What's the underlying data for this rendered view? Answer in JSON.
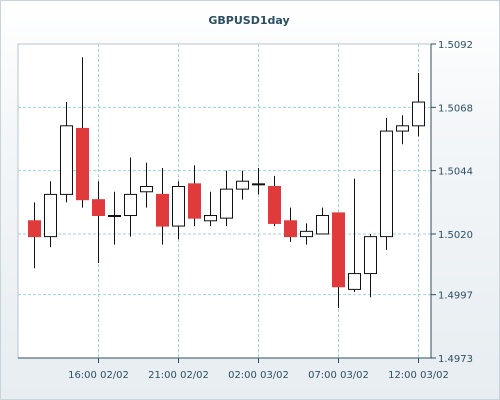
{
  "chart_data": {
    "type": "candlestick",
    "title": "GBPUSD1day",
    "ylim": [
      1.4973,
      1.5092
    ],
    "yticks": [
      "1.5092",
      "1.5068",
      "1.5044",
      "1.5020",
      "1.4997",
      "1.4973"
    ],
    "xticks": [
      {
        "label": "16:00 02/02",
        "index": 4
      },
      {
        "label": "21:00 02/02",
        "index": 9
      },
      {
        "label": "02:00 03/02",
        "index": 14
      },
      {
        "label": "07:00 03/02",
        "index": 19
      },
      {
        "label": "12:00 03/02",
        "index": 24
      }
    ],
    "grid": true,
    "candles": [
      {
        "o": 1.5025,
        "h": 1.5032,
        "l": 1.5007,
        "c": 1.5019
      },
      {
        "o": 1.5019,
        "h": 1.504,
        "l": 1.5015,
        "c": 1.5035
      },
      {
        "o": 1.5035,
        "h": 1.507,
        "l": 1.5032,
        "c": 1.5061
      },
      {
        "o": 1.506,
        "h": 1.5087,
        "l": 1.503,
        "c": 1.5033
      },
      {
        "o": 1.5033,
        "h": 1.504,
        "l": 1.5009,
        "c": 1.5027
      },
      {
        "o": 1.5027,
        "h": 1.5036,
        "l": 1.5016,
        "c": 1.5027
      },
      {
        "o": 1.5027,
        "h": 1.5049,
        "l": 1.5019,
        "c": 1.5035
      },
      {
        "o": 1.5036,
        "h": 1.5047,
        "l": 1.503,
        "c": 1.5038
      },
      {
        "o": 1.5035,
        "h": 1.5045,
        "l": 1.5016,
        "c": 1.5023
      },
      {
        "o": 1.5023,
        "h": 1.504,
        "l": 1.5018,
        "c": 1.5038
      },
      {
        "o": 1.5039,
        "h": 1.5046,
        "l": 1.5023,
        "c": 1.5026
      },
      {
        "o": 1.5025,
        "h": 1.5036,
        "l": 1.5023,
        "c": 1.5027
      },
      {
        "o": 1.5026,
        "h": 1.5044,
        "l": 1.5023,
        "c": 1.5037
      },
      {
        "o": 1.5037,
        "h": 1.5044,
        "l": 1.5033,
        "c": 1.504
      },
      {
        "o": 1.5039,
        "h": 1.5045,
        "l": 1.5035,
        "c": 1.5039
      },
      {
        "o": 1.5038,
        "h": 1.5042,
        "l": 1.5023,
        "c": 1.5024
      },
      {
        "o": 1.5025,
        "h": 1.503,
        "l": 1.5017,
        "c": 1.5019
      },
      {
        "o": 1.5019,
        "h": 1.5024,
        "l": 1.5016,
        "c": 1.5021
      },
      {
        "o": 1.502,
        "h": 1.503,
        "l": 1.502,
        "c": 1.5027
      },
      {
        "o": 1.5028,
        "h": 1.5028,
        "l": 1.4992,
        "c": 1.5
      },
      {
        "o": 1.4999,
        "h": 1.5041,
        "l": 1.4998,
        "c": 1.5005
      },
      {
        "o": 1.5005,
        "h": 1.502,
        "l": 1.4996,
        "c": 1.5019
      },
      {
        "o": 1.5019,
        "h": 1.5064,
        "l": 1.5014,
        "c": 1.5059
      },
      {
        "o": 1.5059,
        "h": 1.5065,
        "l": 1.5054,
        "c": 1.5061
      },
      {
        "o": 1.5061,
        "h": 1.5081,
        "l": 1.5057,
        "c": 1.507
      }
    ],
    "colors": {
      "down": "#e03a3a",
      "up": "#ffffff",
      "outline": "#111111",
      "grid": "#9fd3d8",
      "axis": "#2c4f63"
    }
  }
}
